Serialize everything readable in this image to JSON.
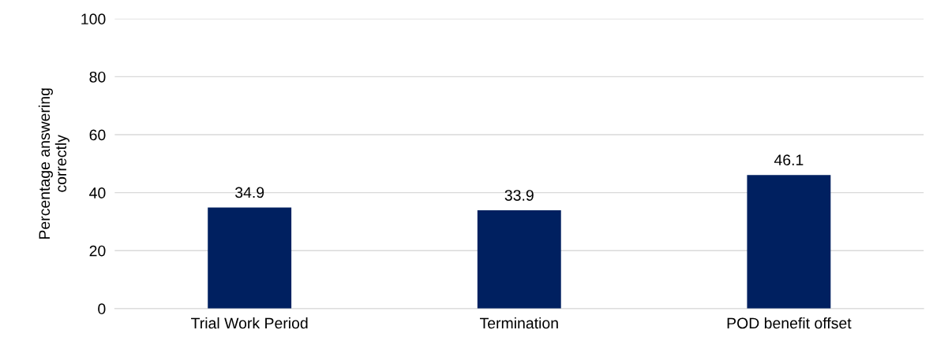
{
  "chart_data": {
    "type": "bar",
    "ylabel": "Percentage answering correctly",
    "categories": [
      "Trial Work Period",
      "Termination",
      "POD benefit offset"
    ],
    "values": [
      34.9,
      33.9,
      46.1
    ],
    "color": "#002060",
    "ylim": [
      0,
      100
    ],
    "yticks": [
      0,
      20,
      40,
      60,
      80,
      100
    ],
    "grid": "y",
    "data_labels": true
  }
}
